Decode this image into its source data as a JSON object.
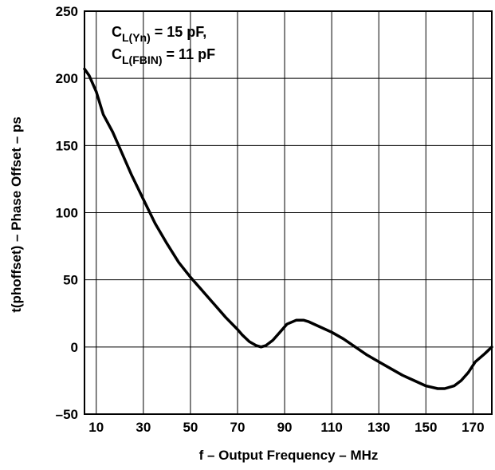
{
  "chart_data": {
    "type": "line",
    "title": "",
    "xlabel": "f – Output Frequency – MHz",
    "ylabel": "t(phoffset) – Phase Offset – ps",
    "xlim": [
      5,
      178
    ],
    "ylim": [
      -50,
      250
    ],
    "x_ticks": [
      10,
      30,
      50,
      70,
      90,
      110,
      130,
      150,
      170
    ],
    "y_ticks": [
      -50,
      0,
      50,
      100,
      150,
      200,
      250
    ],
    "x_tick_labels": [
      "10",
      "30",
      "50",
      "70",
      "90",
      "110",
      "130",
      "150",
      "170"
    ],
    "y_tick_labels": [
      "–50",
      "0",
      "50",
      "100",
      "150",
      "200",
      "250"
    ],
    "grid": true,
    "legend": "none",
    "annotation": {
      "line1": {
        "main": "C",
        "sub": "L(Yn)",
        "rest": " = 15 pF,"
      },
      "line2": {
        "main": "C",
        "sub": "L(FBIN)",
        "rest": "  = 11 pF"
      }
    },
    "series": [
      {
        "color": "#000000",
        "x": [
          5,
          7,
          10,
          13,
          17,
          20,
          25,
          30,
          35,
          40,
          45,
          50,
          55,
          60,
          65,
          70,
          72,
          75,
          78,
          80,
          82,
          85,
          88,
          91,
          95,
          98,
          100,
          105,
          110,
          115,
          120,
          125,
          130,
          135,
          140,
          145,
          150,
          155,
          158,
          162,
          165,
          168,
          171,
          175,
          178
        ],
        "y": [
          207,
          202,
          190,
          173,
          160,
          148,
          128,
          110,
          92,
          77,
          63,
          52,
          42,
          32,
          22,
          13,
          9,
          4,
          1,
          0,
          1,
          5,
          11,
          17,
          20,
          20,
          19,
          15,
          11,
          6,
          0,
          -6,
          -11,
          -16,
          -21,
          -25,
          -29,
          -31,
          -31,
          -29,
          -25,
          -19,
          -11,
          -5,
          0
        ]
      }
    ]
  }
}
